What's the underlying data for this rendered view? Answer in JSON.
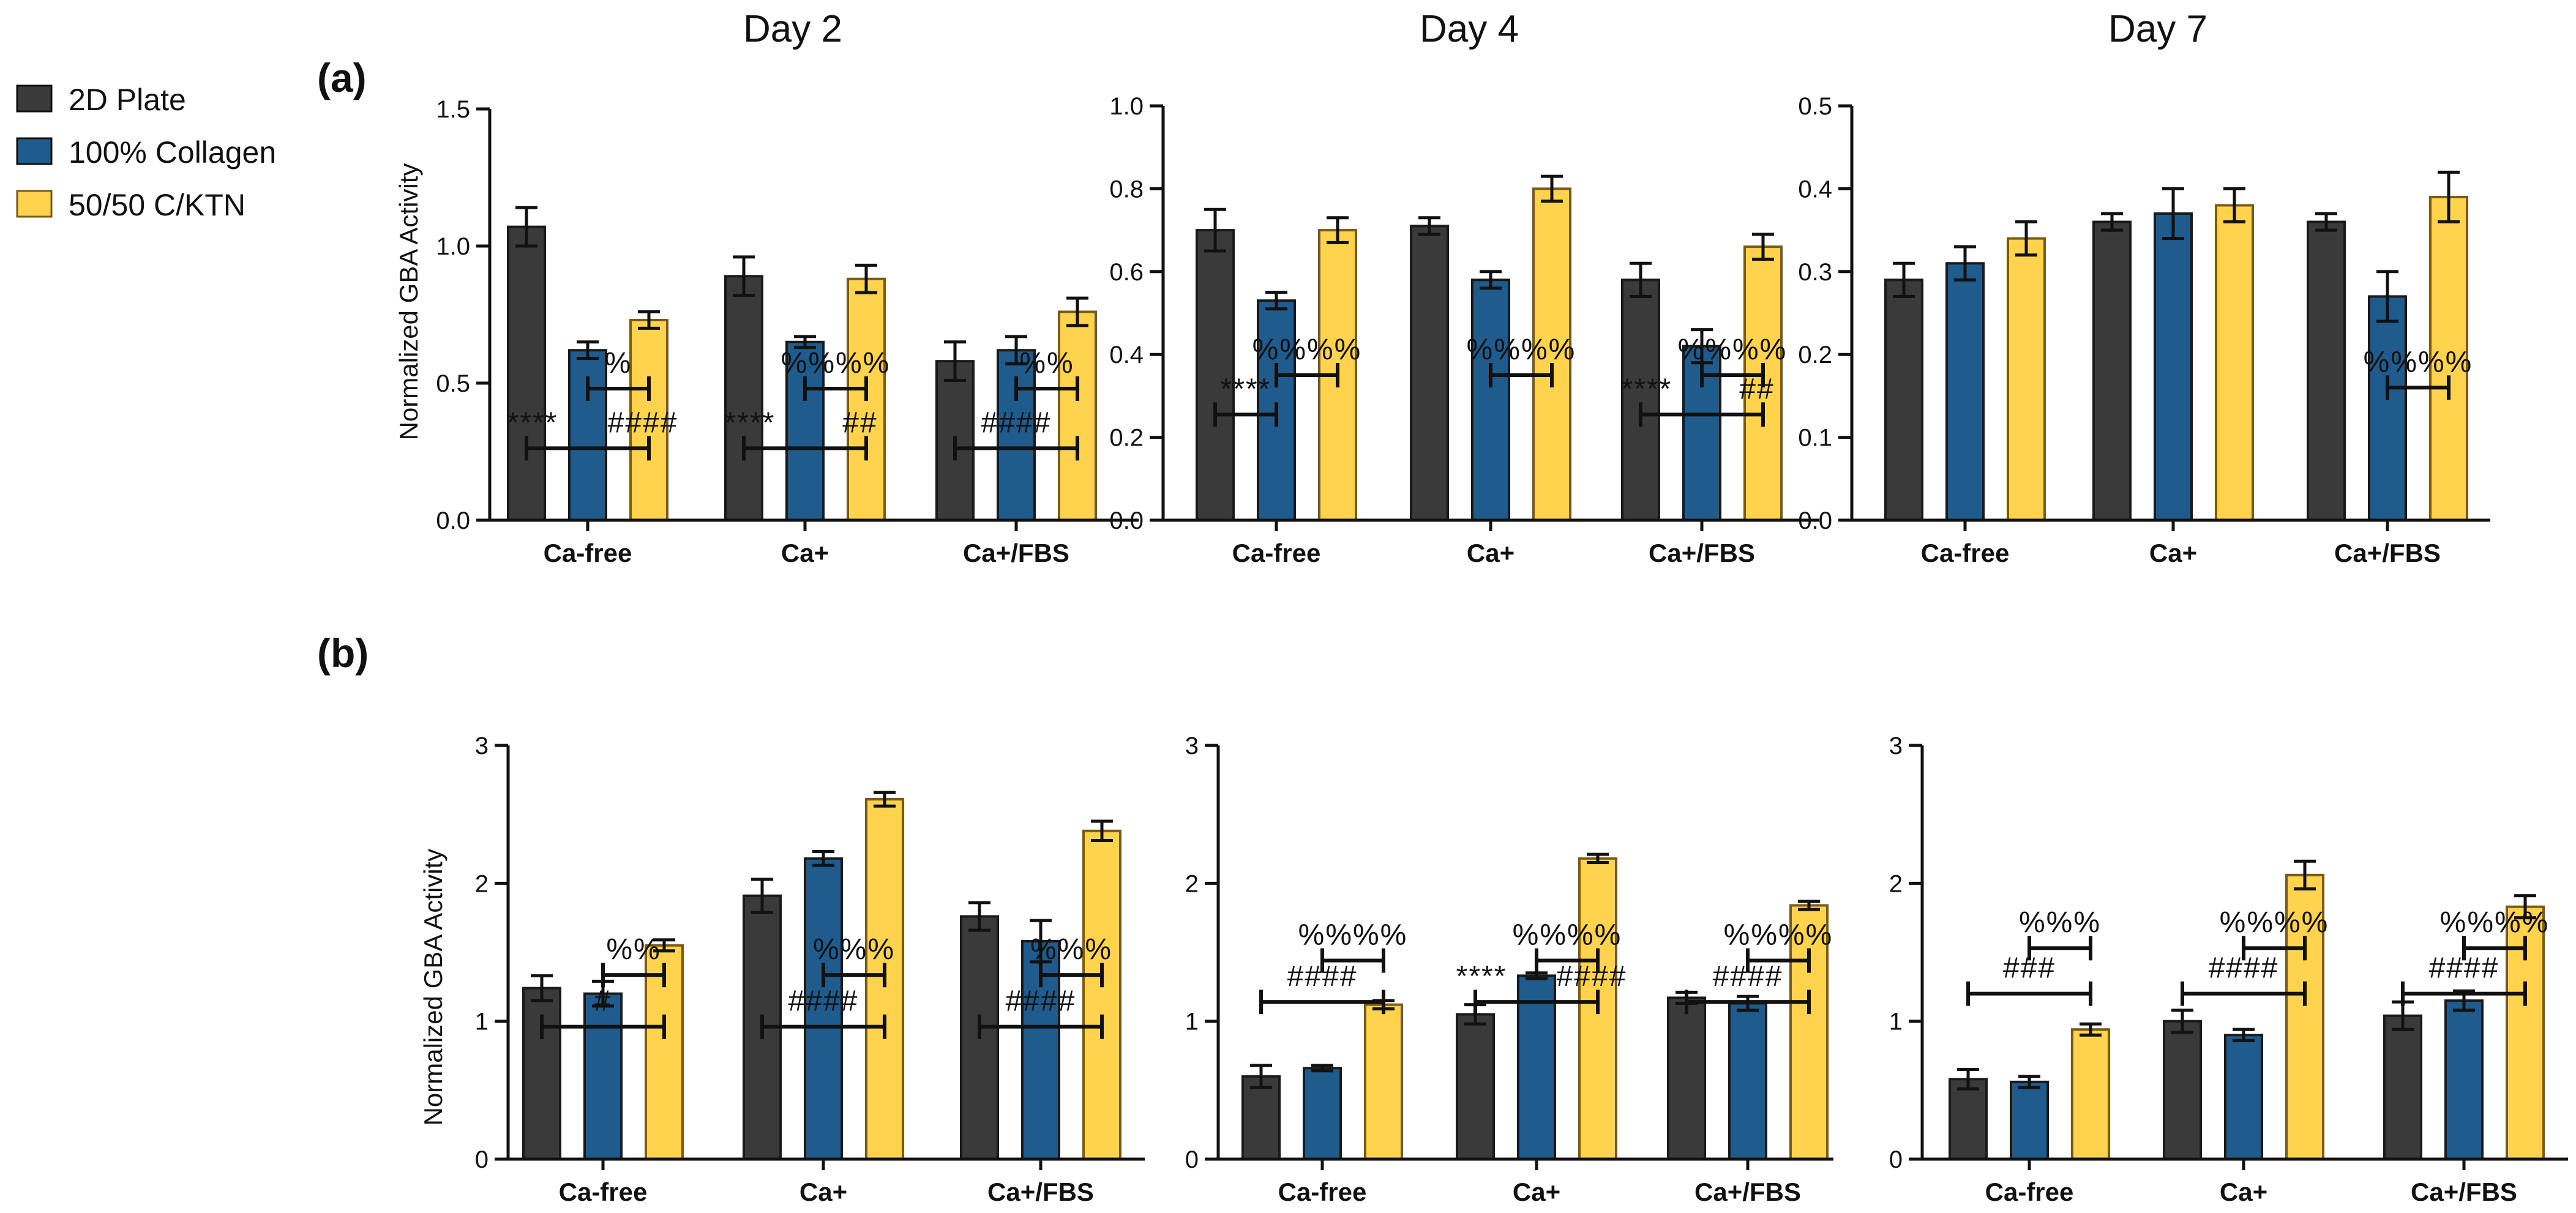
{
  "chart_data": [
    {
      "type": "bar",
      "panel": "(a)",
      "title": "Day 2",
      "xlabel": "",
      "ylabel": "Normalized GBA Activity",
      "ylim": [
        0,
        1.5
      ],
      "yticks": [
        "0.0",
        "0.5",
        "1.0",
        "1.5"
      ],
      "categories": [
        "Ca-free",
        "Ca+",
        "Ca+/FBS"
      ],
      "series": [
        {
          "name": "2D Plate",
          "values": [
            1.07,
            0.89,
            0.58
          ],
          "errors": [
            0.07,
            0.07,
            0.07
          ]
        },
        {
          "name": "100% Collagen",
          "values": [
            0.62,
            0.65,
            0.62
          ],
          "errors": [
            0.03,
            0.02,
            0.05
          ]
        },
        {
          "name": "50/50 C/KTN",
          "values": [
            0.73,
            0.88,
            0.76
          ],
          "errors": [
            0.03,
            0.05,
            0.05
          ]
        }
      ],
      "annotations": [
        {
          "group": 0,
          "from": 0,
          "to": 2,
          "level": 0,
          "labels": [
            "****",
            "####"
          ]
        },
        {
          "group": 0,
          "from": 1,
          "to": 2,
          "level": 1,
          "labels": [
            "%"
          ]
        },
        {
          "group": 1,
          "from": 0,
          "to": 2,
          "level": 0,
          "labels": [
            "****",
            "##"
          ]
        },
        {
          "group": 1,
          "from": 1,
          "to": 2,
          "level": 1,
          "labels": [
            "%%%%"
          ]
        },
        {
          "group": 2,
          "from": 0,
          "to": 2,
          "level": 0,
          "labels": [
            "####"
          ]
        },
        {
          "group": 2,
          "from": 1,
          "to": 2,
          "level": 1,
          "labels": [
            "%%"
          ]
        }
      ]
    },
    {
      "type": "bar",
      "panel": "",
      "title": "Day 4",
      "xlabel": "",
      "ylabel": "",
      "ylim": [
        0,
        1.0
      ],
      "yticks": [
        "0.0",
        "0.2",
        "0.4",
        "0.6",
        "0.8",
        "1.0"
      ],
      "categories": [
        "Ca-free",
        "Ca+",
        "Ca+/FBS"
      ],
      "series": [
        {
          "name": "2D Plate",
          "values": [
            0.7,
            0.71,
            0.58
          ],
          "errors": [
            0.05,
            0.02,
            0.04
          ]
        },
        {
          "name": "100% Collagen",
          "values": [
            0.53,
            0.58,
            0.42
          ],
          "errors": [
            0.02,
            0.02,
            0.04
          ]
        },
        {
          "name": "50/50 C/KTN",
          "values": [
            0.7,
            0.8,
            0.66
          ],
          "errors": [
            0.03,
            0.03,
            0.03
          ]
        }
      ],
      "annotations": [
        {
          "group": 0,
          "from": 0,
          "to": 1,
          "level": 0,
          "labels": [
            "****"
          ]
        },
        {
          "group": 0,
          "from": 1,
          "to": 2,
          "level": 1,
          "labels": [
            "%%%%"
          ]
        },
        {
          "group": 1,
          "from": 1,
          "to": 2,
          "level": 1,
          "labels": [
            "%%%%"
          ]
        },
        {
          "group": 2,
          "from": 0,
          "to": 2,
          "level": 0,
          "labels": [
            "****",
            "##"
          ]
        },
        {
          "group": 2,
          "from": 1,
          "to": 2,
          "level": 1,
          "labels": [
            "%%%%"
          ]
        }
      ]
    },
    {
      "type": "bar",
      "panel": "",
      "title": "Day 7",
      "xlabel": "",
      "ylabel": "",
      "ylim": [
        0,
        0.5
      ],
      "yticks": [
        "0.0",
        "0.1",
        "0.2",
        "0.3",
        "0.4",
        "0.5"
      ],
      "categories": [
        "Ca-free",
        "Ca+",
        "Ca+/FBS"
      ],
      "series": [
        {
          "name": "2D Plate",
          "values": [
            0.29,
            0.36,
            0.36
          ],
          "errors": [
            0.02,
            0.01,
            0.01
          ]
        },
        {
          "name": "100% Collagen",
          "values": [
            0.31,
            0.37,
            0.27
          ],
          "errors": [
            0.02,
            0.03,
            0.03
          ]
        },
        {
          "name": "50/50 C/KTN",
          "values": [
            0.34,
            0.38,
            0.39
          ],
          "errors": [
            0.02,
            0.02,
            0.03
          ]
        }
      ],
      "annotations": [
        {
          "group": 2,
          "from": 1,
          "to": 2,
          "level": 1,
          "labels": [
            "%%%%"
          ]
        }
      ]
    },
    {
      "type": "bar",
      "panel": "(b)",
      "title": "",
      "xlabel": "",
      "ylabel": "Normalized GBA Activity",
      "ylim": [
        0,
        3
      ],
      "yticks": [
        "0",
        "1",
        "2",
        "3"
      ],
      "categories": [
        "Ca-free",
        "Ca+",
        "Ca+/FBS"
      ],
      "series": [
        {
          "name": "2D Plate",
          "values": [
            1.24,
            1.91,
            1.76
          ],
          "errors": [
            0.09,
            0.12,
            0.1
          ]
        },
        {
          "name": "100% Collagen",
          "values": [
            1.2,
            2.18,
            1.58
          ],
          "errors": [
            0.09,
            0.05,
            0.15
          ]
        },
        {
          "name": "50/50 C/KTN",
          "values": [
            1.55,
            2.61,
            2.38
          ],
          "errors": [
            0.04,
            0.05,
            0.07
          ]
        }
      ],
      "annotations": [
        {
          "group": 0,
          "from": 0,
          "to": 2,
          "level": 0,
          "labels": [
            "#"
          ]
        },
        {
          "group": 0,
          "from": 1,
          "to": 2,
          "level": 1,
          "labels": [
            "%%"
          ]
        },
        {
          "group": 1,
          "from": 0,
          "to": 2,
          "level": 0,
          "labels": [
            "####"
          ]
        },
        {
          "group": 1,
          "from": 1,
          "to": 2,
          "level": 1,
          "labels": [
            "%%%"
          ]
        },
        {
          "group": 2,
          "from": 0,
          "to": 2,
          "level": 0,
          "labels": [
            "####"
          ]
        },
        {
          "group": 2,
          "from": 1,
          "to": 2,
          "level": 1,
          "labels": [
            "%%%"
          ]
        }
      ]
    },
    {
      "type": "bar",
      "panel": "",
      "title": "",
      "xlabel": "",
      "ylabel": "",
      "ylim": [
        0,
        3
      ],
      "yticks": [
        "0",
        "1",
        "2",
        "3"
      ],
      "categories": [
        "Ca-free",
        "Ca+",
        "Ca+/FBS"
      ],
      "series": [
        {
          "name": "2D Plate",
          "values": [
            0.6,
            1.05,
            1.17
          ],
          "errors": [
            0.08,
            0.07,
            0.04
          ]
        },
        {
          "name": "100% Collagen",
          "values": [
            0.66,
            1.33,
            1.13
          ],
          "errors": [
            0.02,
            0.02,
            0.05
          ]
        },
        {
          "name": "50/50 C/KTN",
          "values": [
            1.12,
            2.18,
            1.84
          ],
          "errors": [
            0.03,
            0.03,
            0.03
          ]
        }
      ],
      "annotations": [
        {
          "group": 0,
          "from": 0,
          "to": 2,
          "level": 0,
          "labels": [
            "####"
          ]
        },
        {
          "group": 0,
          "from": 1,
          "to": 2,
          "level": 1,
          "labels": [
            "%%%%"
          ]
        },
        {
          "group": 1,
          "from": 0,
          "to": 2,
          "level": 0,
          "labels": [
            "****",
            "####"
          ]
        },
        {
          "group": 1,
          "from": 1,
          "to": 2,
          "level": 1,
          "labels": [
            "%%%%"
          ]
        },
        {
          "group": 2,
          "from": 0,
          "to": 2,
          "level": 0,
          "labels": [
            "####"
          ]
        },
        {
          "group": 2,
          "from": 1,
          "to": 2,
          "level": 1,
          "labels": [
            "%%%%"
          ]
        }
      ]
    },
    {
      "type": "bar",
      "panel": "",
      "title": "",
      "xlabel": "",
      "ylabel": "",
      "ylim": [
        0,
        3
      ],
      "yticks": [
        "0",
        "1",
        "2",
        "3"
      ],
      "categories": [
        "Ca-free",
        "Ca+",
        "Ca+/FBS"
      ],
      "series": [
        {
          "name": "2D Plate",
          "values": [
            0.58,
            1.0,
            1.04
          ],
          "errors": [
            0.07,
            0.08,
            0.1
          ]
        },
        {
          "name": "100% Collagen",
          "values": [
            0.56,
            0.9,
            1.15
          ],
          "errors": [
            0.04,
            0.04,
            0.07
          ]
        },
        {
          "name": "50/50 C/KTN",
          "values": [
            0.94,
            2.06,
            1.83
          ],
          "errors": [
            0.04,
            0.1,
            0.08
          ]
        }
      ],
      "annotations": [
        {
          "group": 0,
          "from": 0,
          "to": 2,
          "level": 0,
          "labels": [
            "###"
          ]
        },
        {
          "group": 0,
          "from": 1,
          "to": 2,
          "level": 1,
          "labels": [
            "%%%"
          ]
        },
        {
          "group": 1,
          "from": 0,
          "to": 2,
          "level": 0,
          "labels": [
            "####"
          ]
        },
        {
          "group": 1,
          "from": 1,
          "to": 2,
          "level": 1,
          "labels": [
            "%%%%"
          ]
        },
        {
          "group": 2,
          "from": 0,
          "to": 2,
          "level": 0,
          "labels": [
            "####"
          ]
        },
        {
          "group": 2,
          "from": 1,
          "to": 2,
          "level": 1,
          "labels": [
            "%%%%"
          ]
        }
      ]
    }
  ],
  "legend": [
    {
      "label": "2D Plate",
      "color": "#3a3a3a"
    },
    {
      "label": "100% Collagen",
      "color": "#1f5b8c"
    },
    {
      "label": "50/50 C/KTN",
      "color": "#ffd34d"
    }
  ],
  "colors": {
    "series": [
      "#3a3a3a",
      "#1f5b8c",
      "#ffd34d"
    ],
    "border": "#7a5a14"
  }
}
